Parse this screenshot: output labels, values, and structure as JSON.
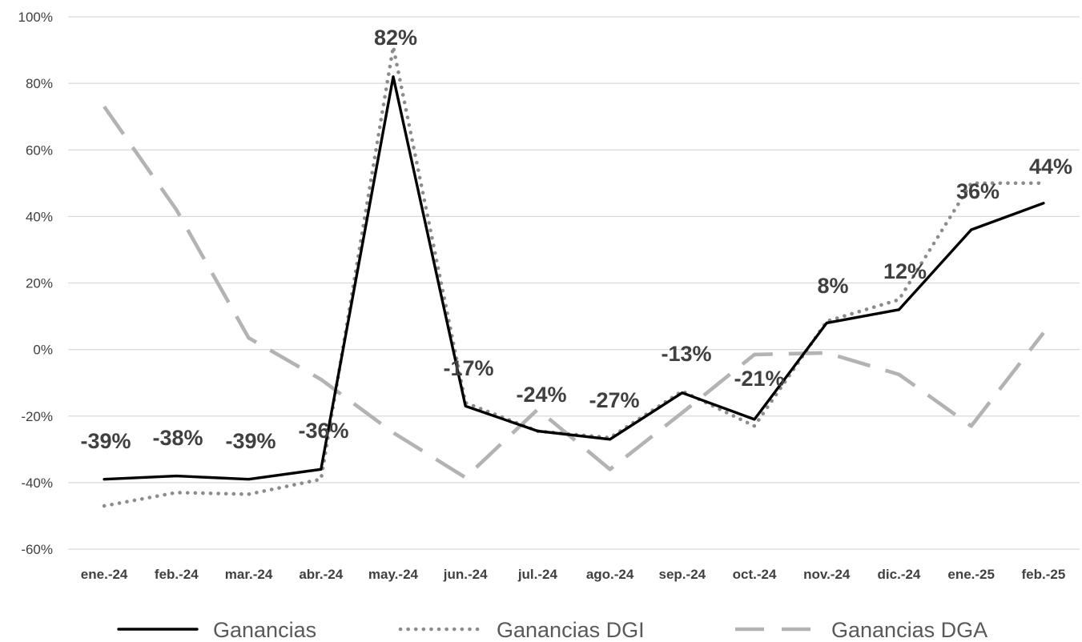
{
  "chart_data": {
    "type": "line",
    "title": "",
    "xlabel": "",
    "ylabel": "",
    "categories": [
      "ene.-24",
      "feb.-24",
      "mar.-24",
      "abr.-24",
      "may.-24",
      "jun.-24",
      "jul.-24",
      "ago.-24",
      "sep.-24",
      "oct.-24",
      "nov.-24",
      "dic.-24",
      "ene.-25",
      "feb.-25"
    ],
    "ylim": [
      -60,
      100
    ],
    "yticks": [
      -60,
      -40,
      -20,
      0,
      20,
      40,
      60,
      80,
      100
    ],
    "ytick_labels": [
      "-60%",
      "-40%",
      "-20%",
      "0%",
      "20%",
      "40%",
      "60%",
      "80%",
      "100%"
    ],
    "grid": "horizontal",
    "legend_position": "bottom",
    "series": [
      {
        "name": "Ganancias",
        "style": "solid",
        "color": "#000000",
        "values": [
          -39,
          -38,
          -39,
          -36,
          82,
          -17,
          -24.5,
          -27,
          -13,
          -21,
          8,
          12,
          36,
          44
        ],
        "data_labels": [
          "-39%",
          "-38%",
          "-39%",
          "-36%",
          "82%",
          "-17%",
          "-24%",
          "-27%",
          "-13%",
          "-21%",
          "8%",
          "12%",
          "36%",
          "44%"
        ]
      },
      {
        "name": "Ganancias DGI",
        "style": "dotted",
        "color": "#8c8c8c",
        "values": [
          -47,
          -43,
          -43.5,
          -39,
          91,
          -16,
          -24.5,
          -26.5,
          -12.5,
          -23,
          8.5,
          15,
          50,
          50
        ]
      },
      {
        "name": "Ganancias DGA",
        "style": "dashed",
        "color": "#b3b3b3",
        "values": [
          73,
          42,
          3.5,
          -9,
          -25,
          -38.5,
          -18,
          -36,
          -19,
          -1.5,
          -1,
          -7.5,
          -23,
          5
        ]
      }
    ]
  }
}
